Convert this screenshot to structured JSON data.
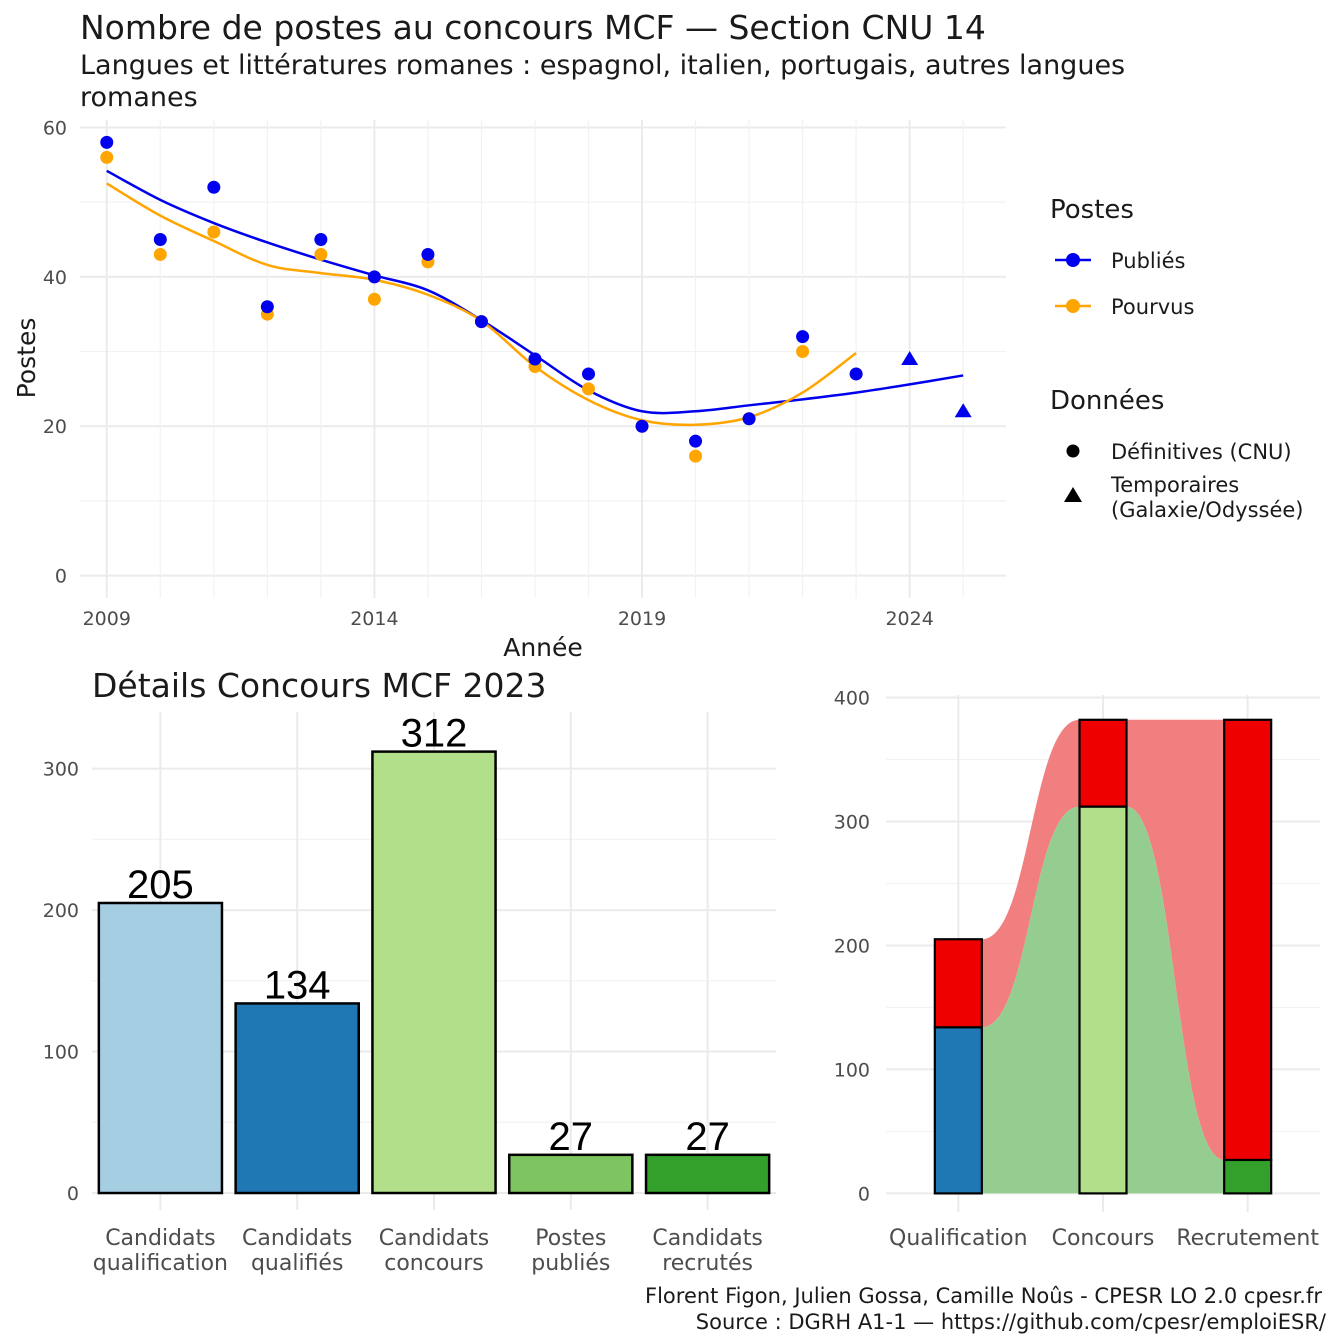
{
  "colors": {
    "publies": "#0000ee",
    "pourvus": "#ffa500",
    "qualif_light": "#a6cee3",
    "qualif_dark": "#1f78b4",
    "concours": "#b2df8a",
    "postes_publies": "#7ec460",
    "recrutes": "#33a02c",
    "red": "#ee0000",
    "red_flow": "#f27f7f",
    "green_flow": "#95cd91"
  },
  "chart_data": [
    {
      "type": "scatter",
      "title": "Nombre de postes au concours MCF —  Section CNU 14",
      "subtitle_line1": "Langues et littératures romanes : espagnol, italien, portugais, autres langues",
      "subtitle_line2": "romanes",
      "xlabel": "Année",
      "ylabel": "Postes",
      "xlim": [
        2008.5,
        2025.8
      ],
      "ylim": [
        -3,
        61
      ],
      "x_ticks": [
        "2009",
        "2014",
        "2019",
        "2024"
      ],
      "y_ticks": [
        "0",
        "20",
        "40",
        "60"
      ],
      "grid": true,
      "legend": {
        "position": "right",
        "postes_title": "Postes",
        "postes_items": [
          "Publiés",
          "Pourvus"
        ],
        "donnees_title": "Données",
        "donnees_item1": "Définitives (CNU)",
        "donnees_item2_line1": "Temporaires",
        "donnees_item2_line2": "(Galaxie/Odyssée)"
      },
      "series": [
        {
          "name": "Publiés",
          "points": [
            [
              2009,
              58
            ],
            [
              2010,
              45
            ],
            [
              2011,
              52
            ],
            [
              2012,
              36
            ],
            [
              2013,
              45
            ],
            [
              2014,
              40
            ],
            [
              2015,
              43
            ],
            [
              2016,
              34
            ],
            [
              2017,
              29
            ],
            [
              2018,
              27
            ],
            [
              2019,
              20
            ],
            [
              2020,
              18
            ],
            [
              2021,
              21
            ],
            [
              2022,
              32
            ],
            [
              2023,
              27
            ]
          ],
          "temporary_points": [
            [
              2024,
              29
            ],
            [
              2025,
              22
            ]
          ],
          "trend": [
            [
              2009,
              54.2
            ],
            [
              2010,
              50.3
            ],
            [
              2011,
              47.2
            ],
            [
              2012,
              44.6
            ],
            [
              2013,
              42.3
            ],
            [
              2014,
              40.2
            ],
            [
              2015,
              38.2
            ],
            [
              2016,
              34.2
            ],
            [
              2017,
              29.5
            ],
            [
              2018,
              24.8
            ],
            [
              2019,
              22.0
            ],
            [
              2020,
              22.0
            ],
            [
              2021,
              22.8
            ],
            [
              2022,
              23.6
            ],
            [
              2023,
              24.5
            ],
            [
              2024,
              25.6
            ],
            [
              2025,
              26.8
            ]
          ]
        },
        {
          "name": "Pourvus",
          "points": [
            [
              2009,
              56
            ],
            [
              2010,
              43
            ],
            [
              2011,
              46
            ],
            [
              2012,
              35
            ],
            [
              2013,
              43
            ],
            [
              2014,
              37
            ],
            [
              2015,
              42
            ],
            [
              2016,
              34
            ],
            [
              2017,
              28
            ],
            [
              2018,
              25
            ],
            [
              2019,
              20
            ],
            [
              2020,
              16
            ],
            [
              2021,
              21
            ],
            [
              2022,
              30
            ],
            [
              2023,
              27
            ]
          ],
          "trend": [
            [
              2009,
              52.5
            ],
            [
              2010,
              48.2
            ],
            [
              2011,
              44.8
            ],
            [
              2012,
              41.6
            ],
            [
              2013,
              40.5
            ],
            [
              2014,
              39.6
            ],
            [
              2015,
              37.6
            ],
            [
              2016,
              34.1
            ],
            [
              2017,
              28.0
            ],
            [
              2018,
              23.5
            ],
            [
              2019,
              20.8
            ],
            [
              2020,
              20.2
            ],
            [
              2021,
              21.2
            ],
            [
              2022,
              24.5
            ],
            [
              2023,
              29.8
            ]
          ]
        }
      ]
    },
    {
      "type": "bar",
      "title": "Détails Concours MCF  2023",
      "categories": [
        "Candidats qualification",
        "Candidats qualifiés",
        "Candidats concours",
        "Postes publiés",
        "Candidats recrutés"
      ],
      "category_lines": [
        [
          "Candidats",
          "qualification"
        ],
        [
          "Candidats",
          "qualifiés"
        ],
        [
          "Candidats",
          "concours"
        ],
        [
          "Postes",
          "publiés"
        ],
        [
          "Candidats",
          "recrutés"
        ]
      ],
      "values": [
        205,
        134,
        312,
        27,
        27
      ],
      "value_labels": [
        "205",
        "134",
        "312",
        "27",
        "27"
      ],
      "colors": [
        "#a6cee3",
        "#1f78b4",
        "#b2df8a",
        "#7ec460",
        "#33a02c"
      ],
      "ylim": [
        -12,
        340
      ],
      "y_ticks": [
        "0",
        "100",
        "200",
        "300"
      ],
      "grid": true
    },
    {
      "type": "bar",
      "categories": [
        "Qualification",
        "Concours",
        "Recrutement"
      ],
      "stacks": [
        {
          "category": "Qualification",
          "bottom": 134,
          "top": 205
        },
        {
          "category": "Concours",
          "bottom": 312,
          "top": 382
        },
        {
          "category": "Recrutement",
          "bottom": 27,
          "top": 382
        }
      ],
      "ylim": [
        -15,
        402
      ],
      "y_ticks": [
        "0",
        "100",
        "200",
        "300",
        "400"
      ],
      "grid": true
    }
  ],
  "caption_line1": "Florent Figon, Julien Gossa, Camille Noûs - CPESR LO 2.0 cpesr.fr",
  "caption_line2": "Source : DGRH A1-1 — https://github.com/cpesr/emploiESR/"
}
